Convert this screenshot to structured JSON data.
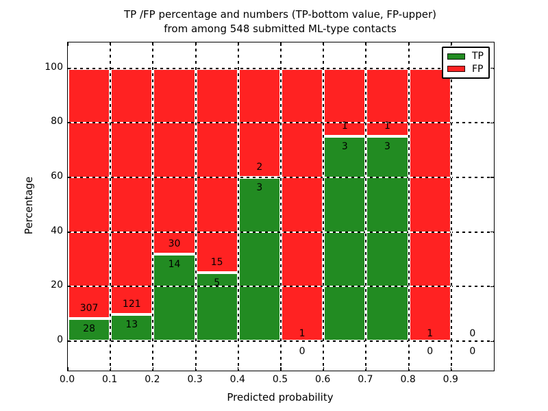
{
  "title": {
    "line1": "TP /FP percentage and numbers (TP-bottom value, FP-upper)",
    "line2": "from among 548 submitted ML-type contacts"
  },
  "axes": {
    "xlabel": "Predicted probability",
    "ylabel": "Percentage",
    "xtick_labels": [
      "0.0",
      "0.1",
      "0.2",
      "0.3",
      "0.4",
      "0.5",
      "0.6",
      "0.7",
      "0.8",
      "0.9"
    ],
    "ytick_labels": [
      "0",
      "20",
      "40",
      "60",
      "80",
      "100"
    ]
  },
  "legend": {
    "items": [
      {
        "label": "TP",
        "color": "#228b22"
      },
      {
        "label": "FP",
        "color": "#ff2222"
      }
    ]
  },
  "chart_data": {
    "type": "bar",
    "subtype": "stacked-percentage-histogram",
    "title": "TP /FP percentage and numbers (TP-bottom value, FP-upper) from among 548 submitted ML-type contacts",
    "xlabel": "Predicted probability",
    "ylabel": "Percentage",
    "xlim": [
      0.0,
      1.0
    ],
    "ylim": [
      -10.8,
      109.4
    ],
    "bin_width": 0.1,
    "grid": true,
    "grid_style": "black-dashed-on-white",
    "legend_position": "upper right",
    "series_colors": {
      "TP": "#228b22",
      "FP": "#ff2222"
    },
    "bar_edge_color": "#ffffff",
    "total_contacts": 548,
    "bins": [
      {
        "range": [
          0.0,
          0.1
        ],
        "tp": 28,
        "fp": 307
      },
      {
        "range": [
          0.1,
          0.2
        ],
        "tp": 13,
        "fp": 121
      },
      {
        "range": [
          0.2,
          0.3
        ],
        "tp": 14,
        "fp": 30
      },
      {
        "range": [
          0.3,
          0.4
        ],
        "tp": 5,
        "fp": 15
      },
      {
        "range": [
          0.4,
          0.5
        ],
        "tp": 3,
        "fp": 2
      },
      {
        "range": [
          0.5,
          0.6
        ],
        "tp": 0,
        "fp": 1
      },
      {
        "range": [
          0.6,
          0.7
        ],
        "tp": 3,
        "fp": 1
      },
      {
        "range": [
          0.7,
          0.8
        ],
        "tp": 3,
        "fp": 1
      },
      {
        "range": [
          0.8,
          0.9
        ],
        "tp": 0,
        "fp": 1
      },
      {
        "range": [
          0.9,
          1.0
        ],
        "tp": 0,
        "fp": 0
      }
    ]
  }
}
